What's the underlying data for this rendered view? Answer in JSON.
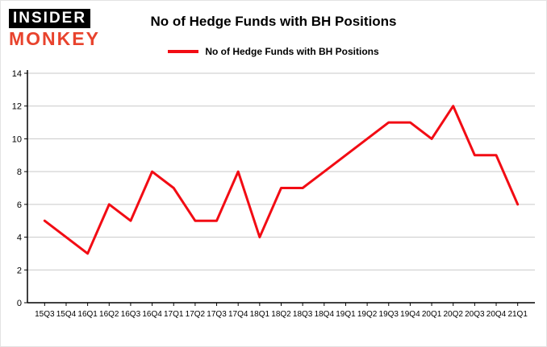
{
  "logo": {
    "line1": "INSIDER",
    "line2": "MONKEY",
    "monkey_color": "#e8432d"
  },
  "header": {
    "title": "No of Hedge Funds with BH Positions"
  },
  "legend": {
    "label": "No of Hedge Funds with BH Positions",
    "color": "#f20c14"
  },
  "chart_data": {
    "type": "line",
    "title": "No of Hedge Funds with BH Positions",
    "categories": [
      "15Q3",
      "15Q4",
      "16Q1",
      "16Q2",
      "16Q3",
      "16Q4",
      "17Q1",
      "17Q2",
      "17Q3",
      "17Q4",
      "18Q1",
      "18Q2",
      "18Q3",
      "18Q4",
      "19Q1",
      "19Q2",
      "19Q3",
      "19Q4",
      "20Q1",
      "20Q2",
      "20Q3",
      "20Q4",
      "21Q1"
    ],
    "values": [
      5,
      4,
      3,
      6,
      5,
      8,
      7,
      5,
      5,
      8,
      4,
      7,
      7,
      8,
      9,
      10,
      11,
      11,
      10,
      12,
      9,
      9,
      6
    ],
    "xlabel": "",
    "ylabel": "",
    "ylim": [
      0,
      14
    ],
    "yticks": [
      0,
      2,
      4,
      6,
      8,
      10,
      12,
      14
    ],
    "grid": true,
    "grid_color": "#c9c9c9",
    "axis_color": "#000000",
    "line_color": "#f20c14",
    "line_width": 3,
    "legend_position": "top"
  }
}
